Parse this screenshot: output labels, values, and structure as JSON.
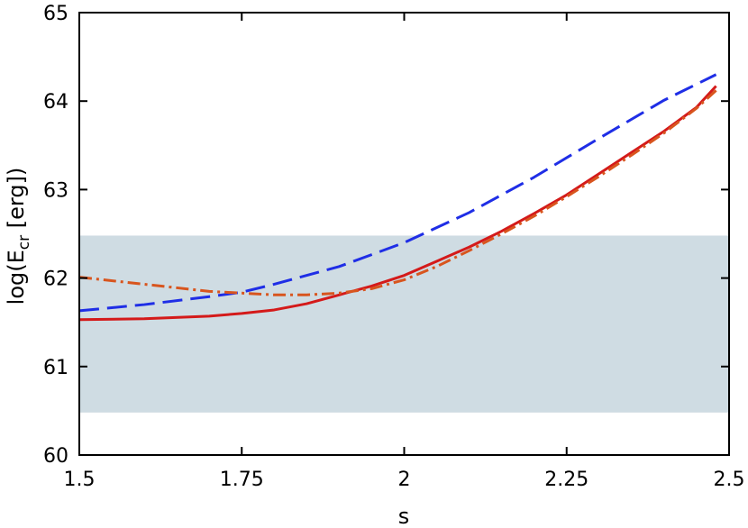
{
  "chart_data": {
    "type": "line",
    "title": "",
    "xlabel": "s",
    "ylabel_main": "log(E",
    "ylabel_sub": "cr",
    "ylabel_tail": " [erg])",
    "xlim": [
      1.5,
      2.5
    ],
    "ylim": [
      60,
      65
    ],
    "x_ticks": [
      1.5,
      1.75,
      2.0,
      2.25,
      2.5
    ],
    "x_tick_labels": [
      "1.5",
      "1.75",
      "2",
      "2.25",
      "2.5"
    ],
    "y_ticks": [
      60,
      61,
      62,
      63,
      64,
      65
    ],
    "y_tick_labels": [
      "60",
      "61",
      "62",
      "63",
      "64",
      "65"
    ],
    "grid": false,
    "legend": "none",
    "shaded_band": {
      "y_min": 60.48,
      "y_max": 62.48,
      "color": "#cfdce3"
    },
    "series": [
      {
        "style": "dashed",
        "color": "#1f2ee6",
        "x": [
          1.5,
          1.6,
          1.7,
          1.75,
          1.8,
          1.9,
          2.0,
          2.1,
          2.2,
          2.3,
          2.4,
          2.48
        ],
        "y": [
          61.63,
          61.7,
          61.79,
          61.84,
          61.93,
          62.13,
          62.4,
          62.74,
          63.14,
          63.58,
          64.01,
          64.3
        ]
      },
      {
        "style": "solid",
        "color": "#d41a1a",
        "x": [
          1.5,
          1.6,
          1.7,
          1.75,
          1.8,
          1.85,
          1.9,
          1.95,
          2.0,
          2.05,
          2.1,
          2.15,
          2.2,
          2.25,
          2.3,
          2.35,
          2.4,
          2.45,
          2.48
        ],
        "y": [
          61.53,
          61.54,
          61.57,
          61.6,
          61.64,
          61.71,
          61.81,
          61.91,
          62.03,
          62.19,
          62.35,
          62.53,
          62.73,
          62.94,
          63.18,
          63.42,
          63.66,
          63.93,
          64.17
        ]
      },
      {
        "style": "dash-dot",
        "color": "#d8551e",
        "x": [
          1.5,
          1.6,
          1.7,
          1.75,
          1.8,
          1.85,
          1.9,
          1.95,
          2.0,
          2.05,
          2.1,
          2.15,
          2.2,
          2.25,
          2.3,
          2.35,
          2.4,
          2.45,
          2.48
        ],
        "y": [
          62.01,
          61.93,
          61.85,
          61.83,
          61.81,
          61.81,
          61.83,
          61.88,
          61.98,
          62.13,
          62.31,
          62.5,
          62.7,
          62.92,
          63.15,
          63.39,
          63.64,
          63.92,
          64.12
        ]
      }
    ]
  }
}
